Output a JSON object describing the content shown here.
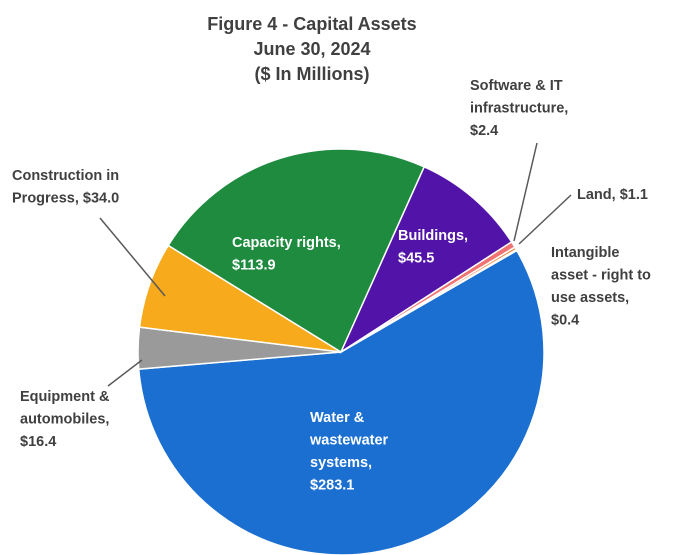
{
  "chart_data": {
    "type": "pie",
    "title": "Figure 4 - Capital Assets",
    "subtitle": "June 30, 2024",
    "unit_note": "($ In Millions)",
    "values": [
      283.1,
      16.4,
      34.0,
      113.9,
      45.5,
      2.4,
      1.1,
      0.4
    ],
    "value_labels": [
      "Water & wastewater systems, $283.1",
      "Equipment & automobiles, $16.4",
      "Construction in Progress, $34.0",
      "Capacity rights, $113.9",
      "Buildings, $45.5",
      "Software & IT infrastructure, $2.4",
      "Land, $1.1",
      "Intangible asset - right to use assets, $0.4"
    ],
    "colors": [
      "#1b6fd0",
      "#9a9a9a",
      "#f6aa1c",
      "#1e8b3f",
      "#5214a8",
      "#f07272",
      "#f08a4b",
      "#8ab8d6"
    ]
  }
}
